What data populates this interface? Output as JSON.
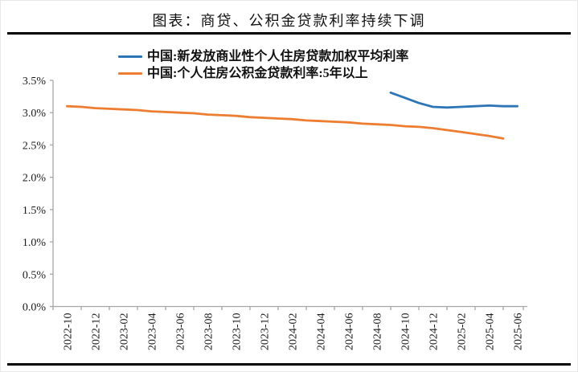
{
  "page_title": "图表：商贷、公积金贷款利率持续下调",
  "colors": {
    "series_blue": "#2E75B6",
    "series_orange": "#ED7D31",
    "axis_line": "#A6A6A6",
    "tick_text": "#1A1A1A",
    "divider": "#000000"
  },
  "chart_data": {
    "type": "line",
    "title": "图表：商贷、公积金贷款利率持续下调",
    "xlabel": "",
    "ylabel": "",
    "ylim": [
      0,
      3.5
    ],
    "ytick_step": 0.5,
    "ytick_format": "percent",
    "grid": false,
    "legend_position": "top-left",
    "y_tick_labels": [
      "0.0%",
      "0.5%",
      "1.0%",
      "1.5%",
      "2.0%",
      "2.5%",
      "3.0%",
      "3.5%"
    ],
    "x_tick_labels": [
      "2022-10",
      "2022-12",
      "2023-02",
      "2023-04",
      "2023-06",
      "2023-08",
      "2023-10",
      "2023-12",
      "2024-02",
      "2024-04",
      "2024-06",
      "2024-08",
      "2024-10",
      "2024-12",
      "2025-02",
      "2025-04",
      "2025-06"
    ],
    "x_axis_start_month": "2022-10",
    "x_axis_end_month": "2025-06",
    "series": [
      {
        "name": "中国:新发放商业性个人住房贷款加权平均利率",
        "color": "#2E75B6",
        "start_index": 23,
        "months": [
          "2024-09",
          "2024-10",
          "2024-11",
          "2024-12",
          "2025-01",
          "2025-02",
          "2025-03",
          "2025-04",
          "2025-05",
          "2025-06"
        ],
        "values": [
          3.31,
          3.23,
          3.15,
          3.09,
          3.08,
          3.09,
          3.1,
          3.11,
          3.1,
          3.1
        ]
      },
      {
        "name": "中国:个人住房公积金贷款利率:5年以上",
        "color": "#ED7D31",
        "start_index": 0,
        "months": [
          "2022-10",
          "2022-11",
          "2022-12",
          "2023-01",
          "2023-02",
          "2023-03",
          "2023-04",
          "2023-05",
          "2023-06",
          "2023-07",
          "2023-08",
          "2023-09",
          "2023-10",
          "2023-11",
          "2023-12",
          "2024-01",
          "2024-02",
          "2024-03",
          "2024-04",
          "2024-05",
          "2024-06",
          "2024-07",
          "2024-08",
          "2024-09",
          "2024-10",
          "2024-11",
          "2024-12",
          "2025-01",
          "2025-02",
          "2025-03",
          "2025-04",
          "2025-05"
        ],
        "values": [
          3.1,
          3.09,
          3.07,
          3.06,
          3.05,
          3.04,
          3.02,
          3.01,
          3.0,
          2.99,
          2.97,
          2.96,
          2.95,
          2.93,
          2.92,
          2.91,
          2.9,
          2.88,
          2.87,
          2.86,
          2.85,
          2.83,
          2.82,
          2.81,
          2.79,
          2.78,
          2.76,
          2.73,
          2.7,
          2.67,
          2.64,
          2.6
        ]
      }
    ]
  }
}
